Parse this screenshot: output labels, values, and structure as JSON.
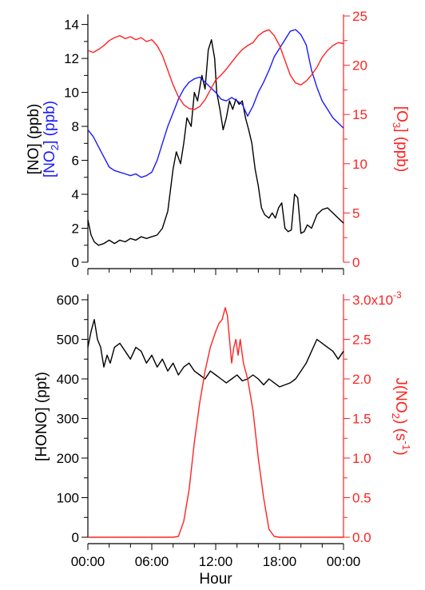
{
  "chart_data": [
    {
      "type": "line",
      "x_unit": "hours since 00:00 (0-24)",
      "xlim": [
        0,
        24
      ],
      "left_axis": {
        "ylim": [
          0,
          14.5
        ],
        "ticks": [
          0,
          2,
          4,
          6,
          8,
          10,
          12,
          14
        ],
        "label_lines": [
          {
            "text": "[NO] (ppb)",
            "color": "#000000"
          },
          {
            "text": "[NO",
            "sub": "2",
            "tail": "] (ppb)",
            "color": "#1a1aff"
          }
        ]
      },
      "right_axis": {
        "ylim": [
          0,
          25
        ],
        "ticks": [
          0,
          5,
          10,
          15,
          20,
          25
        ],
        "label": {
          "text": "[O",
          "sub": "3",
          "tail": "] (ppb)"
        },
        "color": "#ff2222"
      },
      "series": [
        {
          "name": "NO",
          "axis": "left",
          "color": "#000000",
          "x": [
            0,
            0.3,
            0.6,
            1,
            1.5,
            2,
            2.5,
            3,
            3.5,
            4,
            4.5,
            5,
            5.5,
            6,
            6.5,
            7,
            7.5,
            8,
            8.3,
            8.7,
            9,
            9.3,
            9.7,
            10,
            10.3,
            10.7,
            11,
            11.3,
            11.6,
            11.9,
            12.1,
            12.4,
            12.7,
            13,
            13.3,
            13.6,
            13.9,
            14.2,
            14.5,
            14.8,
            15.1,
            15.4,
            15.7,
            16,
            16.3,
            16.6,
            17,
            17.3,
            17.6,
            17.9,
            18.2,
            18.5,
            18.8,
            19.1,
            19.4,
            19.7,
            20,
            20.3,
            20.6,
            21,
            21.5,
            22,
            22.5,
            23,
            23.5,
            24
          ],
          "y": [
            2.5,
            1.6,
            1.2,
            1.0,
            1.1,
            1.3,
            1.1,
            1.3,
            1.2,
            1.4,
            1.3,
            1.5,
            1.4,
            1.5,
            1.6,
            2.0,
            3.0,
            5.5,
            6.5,
            5.8,
            7.0,
            8.5,
            8.0,
            10.0,
            9.5,
            11.0,
            10.2,
            12.5,
            13.1,
            12.0,
            10.0,
            9.0,
            7.8,
            8.5,
            9.5,
            9.0,
            9.6,
            9.3,
            9.5,
            8.5,
            7.8,
            7.0,
            5.5,
            4.5,
            3.2,
            2.8,
            2.6,
            2.9,
            2.6,
            3.2,
            3.5,
            2.0,
            1.8,
            1.9,
            4.0,
            3.8,
            1.7,
            1.8,
            2.2,
            2.0,
            2.8,
            3.1,
            3.2,
            2.9,
            2.6,
            2.3
          ]
        },
        {
          "name": "NO2",
          "axis": "left",
          "color": "#1a1aff",
          "x": [
            0,
            0.5,
            1,
            1.5,
            2,
            2.5,
            3,
            3.5,
            4,
            4.5,
            5,
            5.5,
            6,
            6.5,
            7,
            7.5,
            8,
            8.5,
            9,
            9.5,
            10,
            10.5,
            11,
            11.5,
            12,
            12.5,
            13,
            13.5,
            14,
            14.5,
            15,
            15.5,
            16,
            16.5,
            17,
            17.5,
            18,
            18.5,
            19,
            19.5,
            20,
            20.5,
            21,
            21.5,
            22,
            22.5,
            23,
            23.5,
            24
          ],
          "y": [
            7.8,
            7.4,
            6.8,
            6.2,
            5.6,
            5.4,
            5.3,
            5.2,
            5.1,
            5.2,
            5.0,
            5.1,
            5.3,
            6.0,
            7.0,
            8.0,
            8.8,
            9.6,
            10.2,
            10.6,
            10.8,
            10.9,
            10.6,
            10.3,
            10.0,
            9.6,
            9.5,
            9.7,
            9.5,
            9.3,
            8.6,
            9.2,
            10.0,
            10.6,
            11.3,
            12.1,
            12.6,
            13.1,
            13.6,
            13.7,
            13.4,
            12.8,
            11.3,
            10.3,
            9.5,
            9.0,
            8.5,
            8.2,
            7.9
          ]
        },
        {
          "name": "O3",
          "axis": "right",
          "color": "#ff2222",
          "x": [
            0,
            0.5,
            1,
            1.5,
            2,
            2.5,
            3,
            3.5,
            4,
            4.5,
            5,
            5.5,
            6,
            6.5,
            7,
            7.5,
            8,
            8.5,
            9,
            9.5,
            10,
            10.5,
            11,
            11.5,
            12,
            12.5,
            13,
            13.5,
            14,
            14.5,
            15,
            15.5,
            16,
            16.5,
            17,
            17.5,
            18,
            18.5,
            19,
            19.5,
            20,
            20.5,
            21,
            21.5,
            22,
            22.5,
            23,
            23.5,
            24
          ],
          "y": [
            21.5,
            21.3,
            21.6,
            22.0,
            22.5,
            22.8,
            23.0,
            22.7,
            22.9,
            22.6,
            22.8,
            22.4,
            22.6,
            22.0,
            21.0,
            19.5,
            18.0,
            16.8,
            16.0,
            15.6,
            15.5,
            15.8,
            16.5,
            17.5,
            18.5,
            19.0,
            19.6,
            20.3,
            21.0,
            21.6,
            22.0,
            22.3,
            23.0,
            23.4,
            23.6,
            23.0,
            22.0,
            20.5,
            19.0,
            18.2,
            18.0,
            18.4,
            19.0,
            19.8,
            20.8,
            21.5,
            22.0,
            22.3,
            22.2
          ]
        }
      ]
    },
    {
      "type": "line",
      "x_unit": "hours since 00:00 (0-24)",
      "xlim": [
        0,
        24
      ],
      "xlabel": "Hour",
      "x_ticks": [
        {
          "value": 0,
          "label": "00:00"
        },
        {
          "value": 6,
          "label": "06:00"
        },
        {
          "value": 12,
          "label": "12:00"
        },
        {
          "value": 18,
          "label": "18:00"
        },
        {
          "value": 24,
          "label": "00:00"
        }
      ],
      "left_axis": {
        "ylim": [
          0,
          610
        ],
        "ticks": [
          0,
          100,
          200,
          300,
          400,
          500,
          600
        ],
        "label": "[HONO] (ppt)",
        "color": "#000000"
      },
      "right_axis": {
        "ylim": [
          0,
          0.00305
        ],
        "ticks": [
          {
            "value": 0,
            "label": "0.0"
          },
          {
            "value": 0.0005,
            "label": "0.5"
          },
          {
            "value": 0.001,
            "label": "1.0"
          },
          {
            "value": 0.0015,
            "label": "1.5"
          },
          {
            "value": 0.002,
            "label": "2.0"
          },
          {
            "value": 0.0025,
            "label": "2.5"
          },
          {
            "value": 0.003,
            "label": "3.0x10",
            "sup": "-3"
          }
        ],
        "label": {
          "text": "J(NO",
          "sub": "2",
          "tail": ") (s",
          "sup": "-1",
          "end": ")"
        },
        "color": "#ff2222"
      },
      "series": [
        {
          "name": "HONO",
          "axis": "left",
          "color": "#000000",
          "x": [
            0,
            0.3,
            0.6,
            0.9,
            1.2,
            1.5,
            1.8,
            2.1,
            2.5,
            3,
            3.5,
            4,
            4.5,
            5,
            5.5,
            6,
            6.5,
            7,
            7.5,
            8,
            8.5,
            9,
            9.5,
            10,
            10.5,
            11,
            11.5,
            12,
            12.5,
            13,
            13.5,
            14,
            14.5,
            15,
            15.5,
            16,
            16.5,
            17,
            17.5,
            18,
            18.5,
            19,
            19.5,
            20,
            20.5,
            21,
            21.5,
            22,
            22.5,
            23,
            23.5,
            24
          ],
          "y": [
            480,
            520,
            550,
            500,
            480,
            430,
            460,
            440,
            480,
            490,
            470,
            450,
            480,
            470,
            440,
            460,
            430,
            450,
            420,
            440,
            410,
            430,
            440,
            420,
            410,
            400,
            420,
            410,
            400,
            390,
            400,
            410,
            395,
            400,
            410,
            400,
            385,
            400,
            390,
            380,
            385,
            390,
            400,
            420,
            440,
            470,
            500,
            490,
            480,
            470,
            450,
            470
          ]
        },
        {
          "name": "J(NO2)",
          "axis": "right",
          "color": "#ff2222",
          "x": [
            0,
            2,
            4,
            6,
            8,
            8.5,
            9,
            9.5,
            10,
            10.5,
            11,
            11.5,
            12,
            12.3,
            12.6,
            12.9,
            13.1,
            13.3,
            13.5,
            13.7,
            13.9,
            14.1,
            14.3,
            14.6,
            15,
            15.5,
            16,
            16.5,
            17,
            17.5,
            18,
            20,
            22,
            24
          ],
          "y": [
            0,
            0,
            0,
            0,
            0,
            1e-05,
            0.0002,
            0.0006,
            0.0012,
            0.0017,
            0.0021,
            0.0024,
            0.0026,
            0.0027,
            0.00275,
            0.0029,
            0.0028,
            0.0025,
            0.0022,
            0.0024,
            0.0025,
            0.0023,
            0.0025,
            0.0022,
            0.002,
            0.0016,
            0.001,
            0.0005,
            0.0001,
            1e-05,
            0,
            0,
            0,
            0
          ]
        }
      ]
    }
  ]
}
